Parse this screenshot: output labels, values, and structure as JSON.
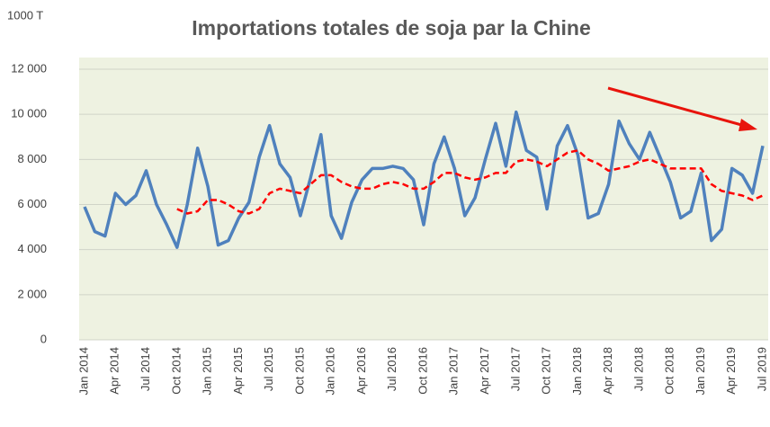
{
  "chart_data": {
    "type": "line",
    "title": "Importations totales de soja par la Chine",
    "y_axis_label": "1000 T",
    "categories": [
      "Jan 2014",
      null,
      null,
      "Apr 2014",
      null,
      null,
      "Jul 2014",
      null,
      null,
      "Oct 2014",
      null,
      null,
      "Jan 2015",
      null,
      null,
      "Apr 2015",
      null,
      null,
      "Jul 2015",
      null,
      null,
      "Oct 2015",
      null,
      null,
      "Jan 2016",
      null,
      null,
      "Apr 2016",
      null,
      null,
      "Jul 2016",
      null,
      null,
      "Oct 2016",
      null,
      null,
      "Jan 2017",
      null,
      null,
      "Apr 2017",
      null,
      null,
      "Jul 2017",
      null,
      null,
      "Oct 2017",
      null,
      null,
      "Jan 2018",
      null,
      null,
      "Apr 2018",
      null,
      null,
      "Jul 2018",
      null,
      null,
      "Oct 2018",
      null,
      null,
      "Jan 2019",
      null,
      null,
      "Apr 2019",
      null,
      null,
      "Jul 2019"
    ],
    "series": [
      {
        "color": "#4f81bd",
        "style": "solid",
        "values": [
          5900,
          4800,
          4600,
          6500,
          6000,
          6400,
          7500,
          6000,
          5100,
          4100,
          6000,
          8500,
          6800,
          4200,
          4400,
          5400,
          6100,
          8100,
          9500,
          7800,
          7200,
          5500,
          7200,
          9100,
          5500,
          4500,
          6100,
          7100,
          7600,
          7600,
          7700,
          7600,
          7100,
          5100,
          7800,
          9000,
          7600,
          5500,
          6300,
          8000,
          9600,
          7700,
          10100,
          8400,
          8100,
          5800,
          8600,
          9500,
          8200,
          5400,
          5600,
          6900,
          9700,
          8700,
          8000,
          9200,
          8100,
          7000,
          5400,
          5700,
          7400,
          4400,
          4900,
          7600,
          7300,
          6500,
          8600
        ]
      },
      {
        "color": "#ff0000",
        "style": "dashed",
        "values": [
          null,
          null,
          null,
          null,
          null,
          null,
          null,
          null,
          null,
          5800,
          5600,
          5700,
          6200,
          6200,
          6000,
          5700,
          5600,
          5800,
          6500,
          6700,
          6600,
          6500,
          6900,
          7300,
          7300,
          7000,
          6800,
          6700,
          6700,
          6900,
          7000,
          6900,
          6700,
          6700,
          7000,
          7400,
          7400,
          7200,
          7100,
          7200,
          7400,
          7400,
          7900,
          8000,
          7900,
          7700,
          8000,
          8300,
          8400,
          8000,
          7800,
          7500,
          7600,
          7700,
          7900,
          8000,
          7800,
          7600,
          7600,
          7600,
          7600,
          6900,
          6600,
          6500,
          6400,
          6200,
          6400
        ]
      }
    ],
    "ylim": [
      0,
      12000
    ],
    "yticks": [
      0,
      {
        "value": 2000,
        "label": "2 000"
      },
      {
        "value": 4000,
        "label": "4 000"
      },
      {
        "value": 6000,
        "label": "6 000"
      },
      {
        "value": 8000,
        "label": "8 000"
      },
      {
        "value": 10000,
        "label": "10 000"
      },
      {
        "value": 12000,
        "label": "12 000"
      }
    ],
    "grid": true
  }
}
